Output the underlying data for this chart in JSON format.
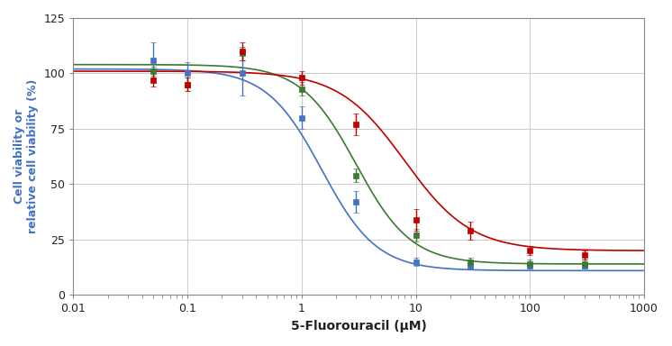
{
  "title": "",
  "xlabel": "5-Fluorouracil (μM)",
  "ylabel": "Cell viability or\nrelative cell viability (%)",
  "xlim": [
    0.01,
    1000
  ],
  "ylim": [
    0,
    125
  ],
  "yticks": [
    0,
    25,
    50,
    75,
    100,
    125
  ],
  "series": [
    {
      "name": "Blue",
      "color": "#4472c4",
      "top": 102,
      "bottom": 11,
      "ec50": 1.5,
      "hill": 1.8,
      "points_x": [
        0.05,
        0.1,
        0.3,
        1.0,
        3.0,
        10.0,
        30.0,
        100.0,
        300.0
      ],
      "points_y": [
        106,
        100,
        100,
        80,
        42,
        15,
        13,
        13,
        13
      ],
      "points_yerr": [
        8,
        5,
        10,
        5,
        5,
        2,
        1,
        1,
        1
      ]
    },
    {
      "name": "Green",
      "color": "#3a7a32",
      "top": 104,
      "bottom": 14,
      "ec50": 3.0,
      "hill": 1.8,
      "points_x": [
        0.05,
        0.1,
        0.3,
        1.0,
        3.0,
        10.0,
        30.0,
        100.0,
        300.0
      ],
      "points_y": [
        101,
        95,
        109,
        93,
        54,
        27,
        15,
        14,
        14
      ],
      "points_yerr": [
        2,
        3,
        3,
        3,
        3,
        3,
        2,
        2,
        2
      ]
    },
    {
      "name": "Red",
      "color": "#c00000",
      "top": 101,
      "bottom": 20,
      "ec50": 8.0,
      "hill": 1.5,
      "points_x": [
        0.05,
        0.1,
        0.3,
        1.0,
        3.0,
        10.0,
        30.0,
        100.0,
        300.0
      ],
      "points_y": [
        97,
        95,
        110,
        98,
        77,
        34,
        29,
        20,
        18
      ],
      "points_yerr": [
        3,
        3,
        4,
        3,
        5,
        5,
        4,
        2,
        2
      ]
    }
  ],
  "background_color": "#ffffff",
  "grid_color": "#cccccc",
  "axis_color": "#888888",
  "ylabel_color": "#4472c4"
}
